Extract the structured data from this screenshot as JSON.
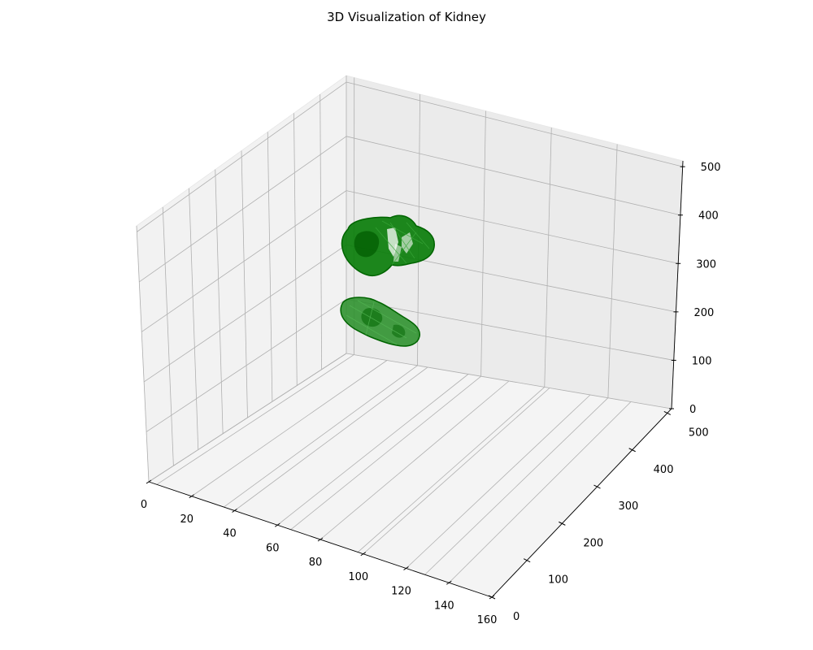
{
  "chart_data": {
    "type": "3d-surface",
    "title": "3D Visualization of Kidney",
    "xlabel": "",
    "ylabel": "",
    "zlabel": "",
    "x_ticks": [
      0,
      20,
      40,
      60,
      80,
      100,
      120,
      140,
      160
    ],
    "y_ticks": [
      0,
      100,
      200,
      300,
      400,
      500
    ],
    "z_ticks": [
      0,
      100,
      200,
      300,
      400,
      500
    ],
    "xlim": [
      0,
      160
    ],
    "ylim": [
      0,
      512
    ],
    "zlim": [
      0,
      512
    ],
    "grid": true,
    "legend": "none",
    "surface_color": "#008000",
    "pane_colors": {
      "left": "#f2f2f2",
      "right": "#ebebeb",
      "floor": "#f4f4f4"
    },
    "objects": [
      {
        "name": "upper kidney",
        "center": [
          60,
          300,
          360
        ],
        "extent": [
          40,
          110,
          110
        ]
      },
      {
        "name": "lower kidney",
        "center": [
          55,
          360,
          140
        ],
        "extent": [
          40,
          140,
          110
        ]
      }
    ]
  }
}
